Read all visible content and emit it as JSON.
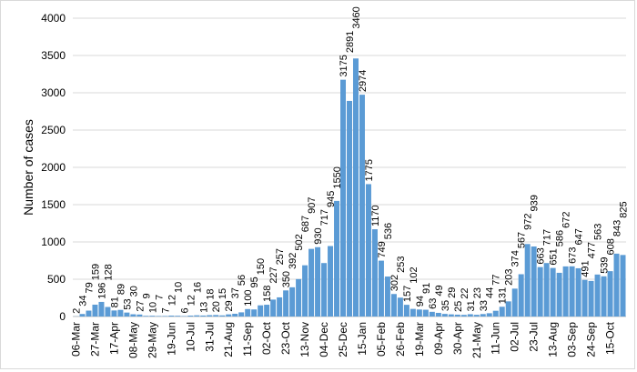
{
  "chart_data": {
    "type": "bar",
    "title": "",
    "xlabel": "",
    "ylabel": "Number of cases",
    "ylim": [
      0,
      4000
    ],
    "yticks": [
      0,
      500,
      1000,
      1500,
      2000,
      2500,
      3000,
      3500,
      4000
    ],
    "grid": true,
    "bar_color": "#5b9bd5",
    "x_tick_labels": [
      "06-Mar",
      "27-Mar",
      "17-Apr",
      "08-May",
      "29-May",
      "19-Jun",
      "10-Jul",
      "31-Jul",
      "21-Aug",
      "11-Sep",
      "02-Oct",
      "23-Oct",
      "13-Nov",
      "04-Dec",
      "25-Dec",
      "15-Jan",
      "05-Feb",
      "26-Feb",
      "19-Mar",
      "09-Apr",
      "30-Apr",
      "21-May",
      "11-Jun",
      "02-Jul",
      "23-Jul",
      "13-Aug",
      "03-Sep",
      "24-Sep",
      "15-Oct"
    ],
    "values": [
      2,
      34,
      79,
      159,
      196,
      128,
      81,
      89,
      53,
      30,
      27,
      9,
      10,
      7,
      7,
      12,
      10,
      6,
      12,
      16,
      13,
      18,
      20,
      15,
      29,
      37,
      56,
      100,
      95,
      150,
      158,
      227,
      257,
      350,
      392,
      502,
      687,
      907,
      930,
      717,
      945,
      1550,
      3175,
      2891,
      3460,
      2974,
      1775,
      1170,
      749,
      536,
      302,
      253,
      157,
      102,
      94,
      91,
      63,
      49,
      35,
      29,
      25,
      22,
      31,
      23,
      33,
      44,
      77,
      131,
      203,
      374,
      567,
      972,
      939,
      663,
      717,
      651,
      586,
      672,
      673,
      647,
      491,
      477,
      563,
      539,
      608,
      843,
      825
    ]
  }
}
